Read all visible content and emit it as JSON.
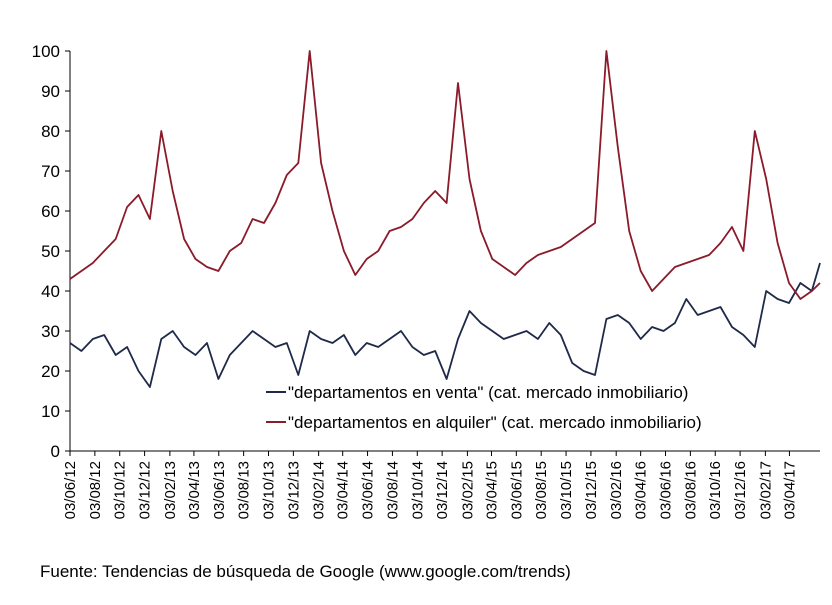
{
  "chart_data": {
    "type": "line",
    "title": "",
    "xlabel": "",
    "ylabel": "",
    "ylim": [
      0,
      100
    ],
    "y_ticks": [
      0,
      10,
      20,
      30,
      40,
      50,
      60,
      70,
      80,
      90,
      100
    ],
    "x_start": "03/06/12",
    "x_end": "17/06/17",
    "x_tick_labels": [
      "03/06/12",
      "03/08/12",
      "03/10/12",
      "03/12/12",
      "03/02/13",
      "03/04/13",
      "03/06/13",
      "03/08/13",
      "03/10/13",
      "03/12/13",
      "03/02/14",
      "03/04/14",
      "03/06/14",
      "03/08/14",
      "03/10/14",
      "03/12/14",
      "03/02/15",
      "03/04/15",
      "03/06/15",
      "03/08/15",
      "03/10/15",
      "03/12/15",
      "03/02/16",
      "03/04/16",
      "03/06/16",
      "03/08/16",
      "03/10/16",
      "03/12/16",
      "03/02/17",
      "03/04/17"
    ],
    "grid": false,
    "legend_position": "bottom-right",
    "series": [
      {
        "name": "\"departamentos en venta\" (cat. mercado inmobiliario)",
        "color": "#1f2a4a",
        "points": [
          [
            "03/06/12",
            27
          ],
          [
            "01/07/12",
            25
          ],
          [
            "29/07/12",
            28
          ],
          [
            "26/08/12",
            29
          ],
          [
            "23/09/12",
            24
          ],
          [
            "21/10/12",
            26
          ],
          [
            "18/11/12",
            20
          ],
          [
            "16/12/12",
            16
          ],
          [
            "13/01/13",
            28
          ],
          [
            "10/02/13",
            30
          ],
          [
            "10/03/13",
            26
          ],
          [
            "07/04/13",
            24
          ],
          [
            "05/05/13",
            27
          ],
          [
            "02/06/13",
            18
          ],
          [
            "30/06/13",
            24
          ],
          [
            "28/07/13",
            27
          ],
          [
            "25/08/13",
            30
          ],
          [
            "22/09/13",
            28
          ],
          [
            "20/10/13",
            26
          ],
          [
            "17/11/13",
            27
          ],
          [
            "15/12/13",
            19
          ],
          [
            "12/01/14",
            30
          ],
          [
            "09/02/14",
            28
          ],
          [
            "09/03/14",
            27
          ],
          [
            "06/04/14",
            29
          ],
          [
            "04/05/14",
            24
          ],
          [
            "01/06/14",
            27
          ],
          [
            "29/06/14",
            26
          ],
          [
            "27/07/14",
            28
          ],
          [
            "24/08/14",
            30
          ],
          [
            "21/09/14",
            26
          ],
          [
            "19/10/14",
            24
          ],
          [
            "16/11/14",
            25
          ],
          [
            "14/12/14",
            18
          ],
          [
            "11/01/15",
            28
          ],
          [
            "08/02/15",
            35
          ],
          [
            "08/03/15",
            32
          ],
          [
            "05/04/15",
            30
          ],
          [
            "03/05/15",
            28
          ],
          [
            "31/05/15",
            29
          ],
          [
            "28/06/15",
            30
          ],
          [
            "26/07/15",
            28
          ],
          [
            "23/08/15",
            32
          ],
          [
            "20/09/15",
            29
          ],
          [
            "18/10/15",
            22
          ],
          [
            "15/11/15",
            20
          ],
          [
            "13/12/15",
            19
          ],
          [
            "10/01/16",
            33
          ],
          [
            "07/02/16",
            34
          ],
          [
            "06/03/16",
            32
          ],
          [
            "03/04/16",
            28
          ],
          [
            "01/05/16",
            31
          ],
          [
            "29/05/16",
            30
          ],
          [
            "26/06/16",
            32
          ],
          [
            "24/07/16",
            38
          ],
          [
            "21/08/16",
            34
          ],
          [
            "18/09/16",
            35
          ],
          [
            "16/10/16",
            36
          ],
          [
            "13/11/16",
            31
          ],
          [
            "11/12/16",
            29
          ],
          [
            "08/01/17",
            26
          ],
          [
            "05/02/17",
            40
          ],
          [
            "05/03/17",
            38
          ],
          [
            "02/04/17",
            37
          ],
          [
            "30/04/17",
            42
          ],
          [
            "28/05/17",
            40
          ],
          [
            "17/06/17",
            47
          ]
        ]
      },
      {
        "name": "\"departamentos en alquiler\" (cat. mercado inmobiliario)",
        "color": "#8b1a2a",
        "points": [
          [
            "03/06/12",
            43
          ],
          [
            "01/07/12",
            45
          ],
          [
            "29/07/12",
            47
          ],
          [
            "26/08/12",
            50
          ],
          [
            "23/09/12",
            53
          ],
          [
            "21/10/12",
            61
          ],
          [
            "18/11/12",
            64
          ],
          [
            "16/12/12",
            58
          ],
          [
            "13/01/13",
            80
          ],
          [
            "10/02/13",
            65
          ],
          [
            "10/03/13",
            53
          ],
          [
            "07/04/13",
            48
          ],
          [
            "05/05/13",
            46
          ],
          [
            "02/06/13",
            45
          ],
          [
            "30/06/13",
            50
          ],
          [
            "28/07/13",
            52
          ],
          [
            "25/08/13",
            58
          ],
          [
            "22/09/13",
            57
          ],
          [
            "20/10/13",
            62
          ],
          [
            "17/11/13",
            69
          ],
          [
            "15/12/13",
            72
          ],
          [
            "12/01/14",
            100
          ],
          [
            "09/02/14",
            72
          ],
          [
            "09/03/14",
            60
          ],
          [
            "06/04/14",
            50
          ],
          [
            "04/05/14",
            44
          ],
          [
            "01/06/14",
            48
          ],
          [
            "29/06/14",
            50
          ],
          [
            "27/07/14",
            55
          ],
          [
            "24/08/14",
            56
          ],
          [
            "21/09/14",
            58
          ],
          [
            "19/10/14",
            62
          ],
          [
            "16/11/14",
            65
          ],
          [
            "14/12/14",
            62
          ],
          [
            "11/01/15",
            92
          ],
          [
            "08/02/15",
            68
          ],
          [
            "08/03/15",
            55
          ],
          [
            "05/04/15",
            48
          ],
          [
            "03/05/15",
            46
          ],
          [
            "31/05/15",
            44
          ],
          [
            "28/06/15",
            47
          ],
          [
            "26/07/15",
            49
          ],
          [
            "23/08/15",
            50
          ],
          [
            "20/09/15",
            51
          ],
          [
            "18/10/15",
            53
          ],
          [
            "15/11/15",
            55
          ],
          [
            "13/12/15",
            57
          ],
          [
            "10/01/16",
            100
          ],
          [
            "07/02/16",
            76
          ],
          [
            "06/03/16",
            55
          ],
          [
            "03/04/16",
            45
          ],
          [
            "01/05/16",
            40
          ],
          [
            "29/05/16",
            43
          ],
          [
            "26/06/16",
            46
          ],
          [
            "24/07/16",
            47
          ],
          [
            "21/08/16",
            48
          ],
          [
            "18/09/16",
            49
          ],
          [
            "16/10/16",
            52
          ],
          [
            "13/11/16",
            56
          ],
          [
            "11/12/16",
            50
          ],
          [
            "08/01/17",
            80
          ],
          [
            "05/02/17",
            68
          ],
          [
            "05/03/17",
            52
          ],
          [
            "02/04/17",
            42
          ],
          [
            "30/04/17",
            38
          ],
          [
            "28/05/17",
            40
          ],
          [
            "17/06/17",
            42
          ]
        ]
      }
    ]
  },
  "footer": {
    "source": "Fuente: Tendencias de búsqueda de Google (www.google.com/trends)"
  }
}
